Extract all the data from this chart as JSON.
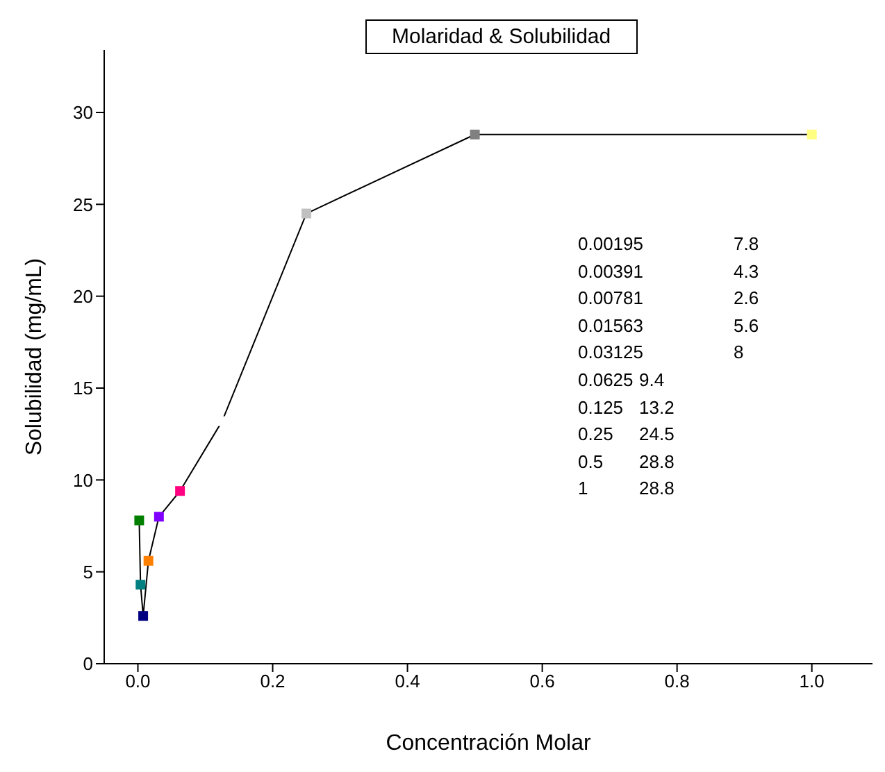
{
  "chart_data": {
    "type": "line",
    "title": "Molaridad & Solubilidad",
    "xlabel": "Concentración Molar",
    "ylabel": "Solubilidad (mg/mL)",
    "x": [
      0.00195,
      0.00391,
      0.00781,
      0.01563,
      0.03125,
      0.0625,
      0.125,
      0.25,
      0.5,
      1
    ],
    "values": [
      7.8,
      4.3,
      2.6,
      5.6,
      8,
      9.4,
      13.2,
      24.5,
      28.8,
      28.8
    ],
    "color": "#000000",
    "colors": [
      "#007f00",
      "#008080",
      "#000080",
      "#ff8000",
      "#8000ff",
      "#ff0080",
      "#ffffff",
      "#c0c0c0",
      "#808080",
      "#ffff80"
    ],
    "marker": "square",
    "annotations": [
      "0.00195",
      "7.8",
      "0.00391",
      "4.3",
      "0.00781",
      "2.6",
      "0.01563",
      "5.6",
      "0.03125",
      "8",
      "0.0625",
      "9.4",
      "0.125",
      "13.2",
      "0.25",
      "24.5",
      "0.5",
      "28.8",
      "1",
      "28.8"
    ],
    "xlim": [
      -0.05,
      1.09
    ],
    "xticks": [
      {
        "value": 0,
        "label": "0.0"
      },
      {
        "value": 0.2,
        "label": "0.2"
      },
      {
        "value": 0.4,
        "label": "0.4"
      },
      {
        "value": 0.6,
        "label": "0.6"
      },
      {
        "value": 0.8,
        "label": "0.8"
      },
      {
        "value": 1,
        "label": "1.0"
      }
    ],
    "ylim": [
      0,
      33.4
    ],
    "yticks": [
      0,
      5,
      10,
      15,
      20,
      25,
      30
    ],
    "grid": false,
    "legend": false
  }
}
